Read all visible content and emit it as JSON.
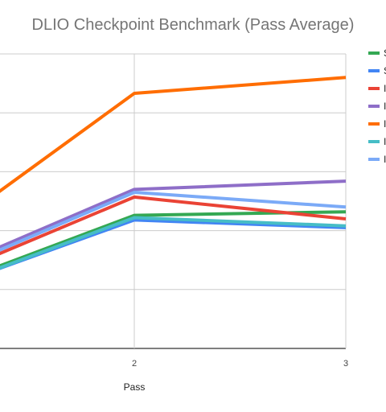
{
  "chart_data": {
    "type": "line",
    "title": "DLIO Checkpoint Benchmark (Pass Average)",
    "xlabel": "Pass",
    "ylabel": "",
    "x": [
      1,
      2,
      3
    ],
    "x_tick_labels": [
      "",
      "2",
      "3"
    ],
    "grid": true,
    "legend_position": "right",
    "series": [
      {
        "name": "S",
        "color": "#34a853",
        "values": [
          0.9,
          2.26,
          2.32
        ]
      },
      {
        "name": "S",
        "color": "#4285f4",
        "values": [
          0.88,
          2.18,
          2.05
        ]
      },
      {
        "name": "I",
        "color": "#ea4335",
        "values": [
          1.05,
          2.57,
          2.2
        ]
      },
      {
        "name": "I",
        "color": "#8e6ec8",
        "values": [
          1.15,
          2.7,
          2.84
        ]
      },
      {
        "name": "I",
        "color": "#ff6d01",
        "values": [
          1.7,
          4.33,
          4.6
        ]
      },
      {
        "name": "I",
        "color": "#46bdc6",
        "values": [
          0.87,
          2.22,
          2.08
        ]
      },
      {
        "name": "I",
        "color": "#7baaf7",
        "values": [
          1.1,
          2.65,
          2.4
        ]
      }
    ]
  }
}
